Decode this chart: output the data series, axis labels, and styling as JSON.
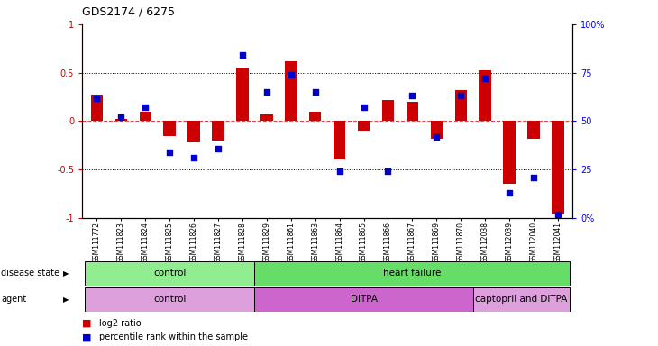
{
  "title": "GDS2174 / 6275",
  "samples": [
    "GSM111772",
    "GSM111823",
    "GSM111824",
    "GSM111825",
    "GSM111826",
    "GSM111827",
    "GSM111828",
    "GSM111829",
    "GSM111861",
    "GSM111863",
    "GSM111864",
    "GSM111865",
    "GSM111866",
    "GSM111867",
    "GSM111869",
    "GSM111870",
    "GSM112038",
    "GSM112039",
    "GSM112040",
    "GSM112041"
  ],
  "log2_ratio": [
    0.27,
    0.02,
    0.1,
    -0.15,
    -0.22,
    -0.2,
    0.55,
    0.07,
    0.62,
    0.1,
    -0.4,
    -0.1,
    0.22,
    0.2,
    -0.18,
    0.32,
    0.52,
    -0.65,
    -0.18,
    -0.95
  ],
  "percentile": [
    62,
    52,
    57,
    34,
    31,
    36,
    84,
    65,
    74,
    65,
    24,
    57,
    24,
    63,
    42,
    63,
    72,
    13,
    21,
    2
  ],
  "disease_state_groups": [
    {
      "label": "control",
      "start": 0,
      "end": 7,
      "color": "#90EE90"
    },
    {
      "label": "heart failure",
      "start": 7,
      "end": 20,
      "color": "#66DD66"
    }
  ],
  "agent_groups": [
    {
      "label": "control",
      "start": 0,
      "end": 7,
      "color": "#DDA0DD"
    },
    {
      "label": "DITPA",
      "start": 7,
      "end": 16,
      "color": "#CC66CC"
    },
    {
      "label": "captopril and DITPA",
      "start": 16,
      "end": 20,
      "color": "#DDA0DD"
    }
  ],
  "bar_color": "#CC0000",
  "dot_color": "#0000CC",
  "ylim_left": [
    -1,
    1
  ],
  "ylim_right": [
    0,
    100
  ],
  "yticks_left": [
    -1,
    -0.5,
    0,
    0.5,
    1
  ],
  "ytick_labels_left": [
    "-1",
    "-0.5",
    "0",
    "0.5",
    "1"
  ],
  "yticks_right": [
    0,
    25,
    50,
    75,
    100
  ],
  "ytick_labels_right": [
    "0%",
    "25",
    "50",
    "75",
    "100%"
  ],
  "hlines_dotted": [
    -0.5,
    0.5
  ],
  "hline_zero": 0,
  "legend_items": [
    {
      "label": "log2 ratio",
      "color": "#CC0000"
    },
    {
      "label": "percentile rank within the sample",
      "color": "#0000CC"
    }
  ]
}
